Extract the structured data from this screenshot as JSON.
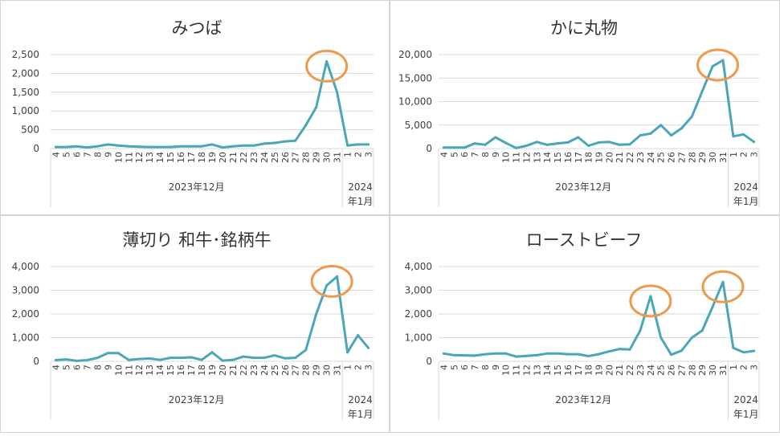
{
  "panel_year_label": "2023年12月",
  "panel_next_year_label_line1": "2024",
  "panel_next_year_label_line2": "年1月",
  "colors": {
    "line": "#4BA6B9",
    "highlight": "#EE9A4D",
    "grid": "#D9D9D9",
    "text": "#404040",
    "title": "#333333",
    "divider": "#D4D4D4"
  },
  "chart_data": [
    {
      "type": "line",
      "title": "みつば",
      "x": [
        "4",
        "5",
        "6",
        "7",
        "8",
        "9",
        "10",
        "11",
        "12",
        "13",
        "14",
        "15",
        "16",
        "17",
        "18",
        "19",
        "20",
        "21",
        "22",
        "23",
        "24",
        "25",
        "26",
        "27",
        "28",
        "29",
        "30",
        "31",
        "1",
        "2",
        "3"
      ],
      "values": [
        40,
        40,
        60,
        30,
        60,
        110,
        80,
        60,
        50,
        40,
        40,
        40,
        60,
        60,
        60,
        110,
        30,
        60,
        80,
        80,
        130,
        150,
        190,
        210,
        620,
        1100,
        2320,
        1500,
        80,
        110,
        110
      ],
      "ylim": [
        0,
        2500
      ],
      "yticks": [
        "0",
        "500",
        "1,000",
        "1,500",
        "2,000",
        "2,500"
      ],
      "highlight_index": [
        26
      ]
    },
    {
      "type": "line",
      "title": "かに丸物",
      "x": [
        "4",
        "5",
        "6",
        "7",
        "8",
        "9",
        "10",
        "11",
        "12",
        "13",
        "14",
        "15",
        "16",
        "17",
        "18",
        "19",
        "20",
        "21",
        "22",
        "23",
        "24",
        "25",
        "26",
        "27",
        "28",
        "29",
        "30",
        "31",
        "1",
        "2",
        "3"
      ],
      "values": [
        200,
        200,
        200,
        1100,
        800,
        2400,
        1200,
        100,
        600,
        1400,
        800,
        1100,
        1300,
        2400,
        600,
        1300,
        1400,
        800,
        900,
        2800,
        3200,
        5000,
        2800,
        4300,
        6800,
        12200,
        17500,
        18800,
        2600,
        3000,
        1400
      ],
      "ylim": [
        0,
        20000
      ],
      "yticks": [
        "0",
        "5,000",
        "10,000",
        "15,000",
        "20,000"
      ],
      "highlight_index": [
        26
      ]
    },
    {
      "type": "line",
      "title": "薄切り 和牛･銘柄牛",
      "x": [
        "4",
        "5",
        "6",
        "7",
        "8",
        "9",
        "10",
        "11",
        "12",
        "13",
        "14",
        "15",
        "16",
        "17",
        "18",
        "19",
        "20",
        "21",
        "22",
        "23",
        "24",
        "25",
        "26",
        "27",
        "28",
        "29",
        "30",
        "31",
        "1",
        "2",
        "3"
      ],
      "values": [
        50,
        80,
        20,
        50,
        150,
        350,
        350,
        60,
        100,
        120,
        60,
        150,
        150,
        170,
        60,
        380,
        30,
        60,
        200,
        150,
        150,
        250,
        130,
        150,
        480,
        2000,
        3200,
        3580,
        380,
        1100,
        570
      ],
      "ylim": [
        0,
        4000
      ],
      "yticks": [
        "0",
        "1,000",
        "2,000",
        "3,000",
        "4,000"
      ],
      "highlight_index": [
        26
      ]
    },
    {
      "type": "line",
      "title": "ローストビーフ",
      "x": [
        "4",
        "5",
        "6",
        "7",
        "8",
        "9",
        "10",
        "11",
        "12",
        "13",
        "14",
        "15",
        "16",
        "17",
        "18",
        "19",
        "20",
        "21",
        "22",
        "23",
        "24",
        "25",
        "26",
        "27",
        "28",
        "29",
        "30",
        "31",
        "1",
        "2",
        "3"
      ],
      "values": [
        330,
        260,
        250,
        240,
        300,
        330,
        330,
        200,
        230,
        260,
        330,
        330,
        300,
        300,
        220,
        300,
        420,
        520,
        500,
        1300,
        2750,
        1000,
        280,
        450,
        1000,
        1300,
        2300,
        3350,
        570,
        380,
        440
      ],
      "ylim": [
        0,
        4000
      ],
      "yticks": [
        "0",
        "1,000",
        "2,000",
        "3,000",
        "4,000"
      ],
      "highlight_index": [
        20,
        27
      ]
    }
  ]
}
